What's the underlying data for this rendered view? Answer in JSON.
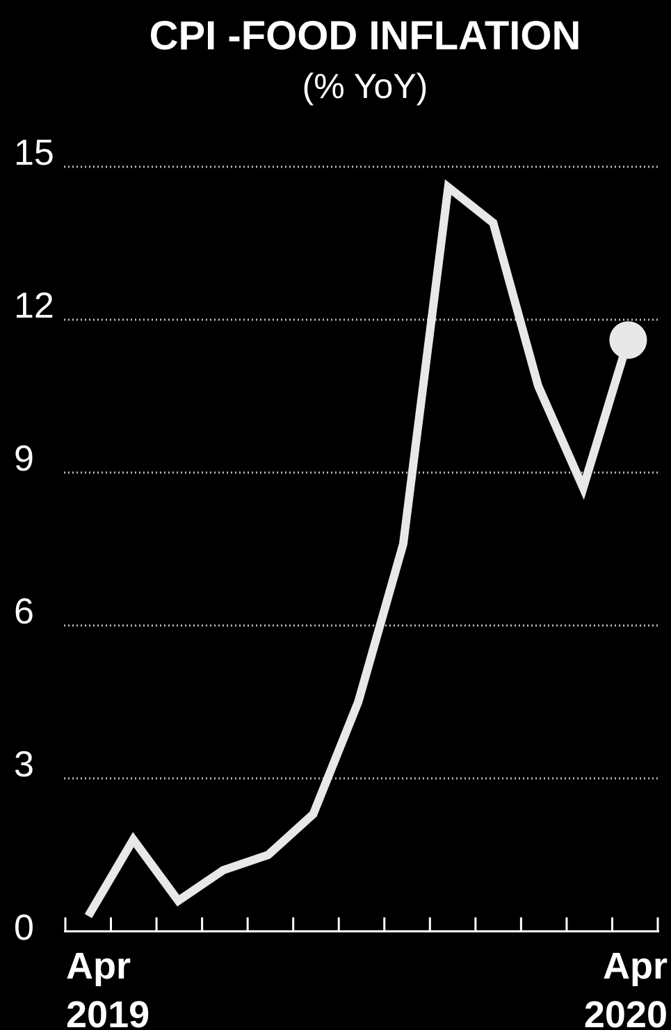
{
  "chart_data": {
    "type": "line",
    "title": "CPI -FOOD INFLATION",
    "subtitle": "(% YoY)",
    "ylim": [
      0,
      15
    ],
    "yticks": [
      0,
      3,
      6,
      9,
      12,
      15
    ],
    "grid": "horizontal dotted",
    "x": [
      "Apr 2019",
      "May 2019",
      "Jun 2019",
      "Jul 2019",
      "Aug 2019",
      "Sep 2019",
      "Oct 2019",
      "Nov 2019",
      "Dec 2019",
      "Jan 2020",
      "Feb 2020",
      "Mar 2020",
      "Apr 2020"
    ],
    "x_labels": [
      {
        "index": 0,
        "line1": "Apr",
        "line2": "2019"
      },
      {
        "index": 12,
        "line1": "Apr",
        "line2": "2020"
      }
    ],
    "values": [
      0.3,
      1.8,
      0.6,
      1.2,
      1.5,
      2.3,
      4.5,
      7.6,
      14.6,
      13.9,
      10.7,
      8.7,
      11.6
    ],
    "colors": {
      "background": "#000000",
      "line": "#e8e8e8",
      "grid": "#bbbbbb",
      "text": "#ffffff"
    }
  }
}
